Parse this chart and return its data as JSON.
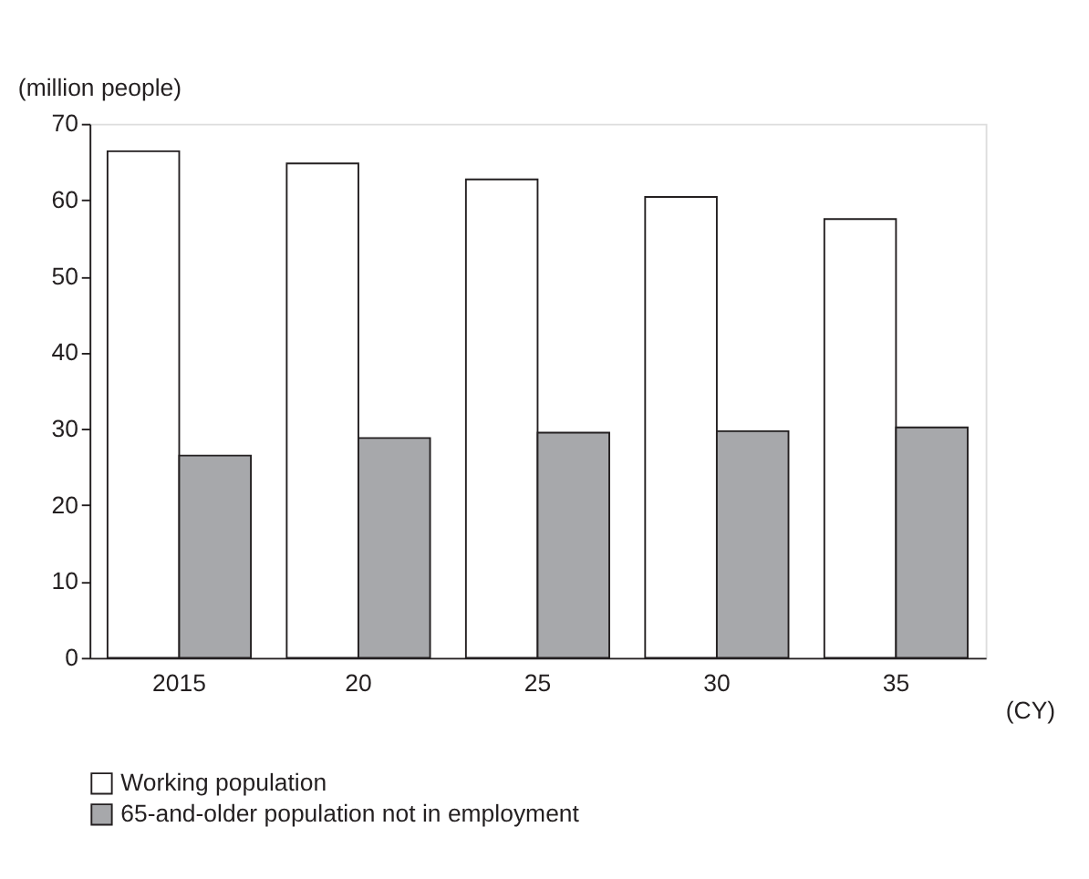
{
  "chart_data": {
    "type": "bar",
    "ylabel": "(million people)",
    "xlabel": "(CY)",
    "categories": [
      "2015",
      "20",
      "25",
      "30",
      "35"
    ],
    "series": [
      {
        "name": "Working population",
        "color": "#ffffff",
        "values": [
          66.4,
          64.8,
          62.7,
          60.4,
          57.5
        ]
      },
      {
        "name": "65-and-older population not in employment",
        "color": "#a7a8ab",
        "values": [
          26.5,
          28.8,
          29.5,
          29.7,
          30.2
        ]
      }
    ],
    "ylim": [
      0,
      70
    ],
    "yticks": [
      0,
      10,
      20,
      30,
      40,
      50,
      60,
      70
    ],
    "grid": false,
    "legend": "bottom left"
  }
}
